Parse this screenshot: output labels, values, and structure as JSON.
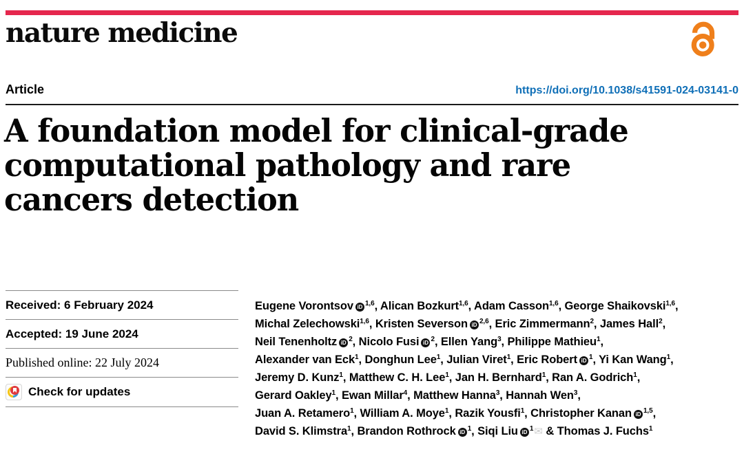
{
  "journal": {
    "name": "nature medicine"
  },
  "brand": {
    "bar_red": "#e5274d",
    "open_access_orange": "#ef7f1b",
    "link_blue": "#0f6fb7"
  },
  "header": {
    "article_label": "Article",
    "doi": "https://doi.org/10.1038/s41591-024-03141-0"
  },
  "title_lines": [
    "A foundation model for clinical-grade",
    "computational pathology and rare",
    "cancers detection"
  ],
  "meta": {
    "received": "Received: 6 February 2024",
    "accepted": "Accepted: 19 June 2024",
    "published": "Published online: 22 July 2024",
    "check_updates": "Check for updates"
  },
  "icons": {
    "open_access": "open-access-lock",
    "orcid": "iD",
    "envelope": "✉",
    "crossmark": "crossmark-badge"
  },
  "authors": {
    "lines": [
      [
        {
          "name": "Eugene Vorontsov",
          "orcid": true,
          "sup": "1,6",
          "sep": ", "
        },
        {
          "name": "Alican Bozkurt",
          "sup": "1,6",
          "sep": ", "
        },
        {
          "name": "Adam Casson",
          "sup": "1,6",
          "sep": ", "
        },
        {
          "name": "George Shaikovski",
          "sup": "1,6",
          "sep": ","
        }
      ],
      [
        {
          "name": "Michal Zelechowski",
          "sup": "1,6",
          "sep": ", "
        },
        {
          "name": "Kristen Severson",
          "orcid": true,
          "sup": "2,6",
          "sep": ", "
        },
        {
          "name": "Eric Zimmermann",
          "sup": "2",
          "sep": ", "
        },
        {
          "name": "James Hall",
          "sup": "2",
          "sep": ","
        }
      ],
      [
        {
          "name": "Neil Tenenholtz",
          "orcid": true,
          "sup": "2",
          "sep": ", "
        },
        {
          "name": "Nicolo Fusi",
          "orcid": true,
          "sup": "2",
          "sep": ", "
        },
        {
          "name": "Ellen Yang",
          "sup": "3",
          "sep": ", "
        },
        {
          "name": "Philippe Mathieu",
          "sup": "1",
          "sep": ","
        }
      ],
      [
        {
          "name": "Alexander van Eck",
          "sup": "1",
          "sep": ", "
        },
        {
          "name": "Donghun Lee",
          "sup": "1",
          "sep": ", "
        },
        {
          "name": "Julian Viret",
          "sup": "1",
          "sep": ", "
        },
        {
          "name": "Eric Robert",
          "orcid": true,
          "sup": "1",
          "sep": ", "
        },
        {
          "name": "Yi Kan Wang",
          "sup": "1",
          "sep": ","
        }
      ],
      [
        {
          "name": "Jeremy D. Kunz",
          "sup": "1",
          "sep": ", "
        },
        {
          "name": "Matthew C. H. Lee",
          "sup": "1",
          "sep": ", "
        },
        {
          "name": "Jan H. Bernhard",
          "sup": "1",
          "sep": ", "
        },
        {
          "name": "Ran A. Godrich",
          "sup": "1",
          "sep": ","
        }
      ],
      [
        {
          "name": "Gerard Oakley",
          "sup": "1",
          "sep": ", "
        },
        {
          "name": "Ewan Millar",
          "sup": "4",
          "sep": ", "
        },
        {
          "name": "Matthew Hanna",
          "sup": "3",
          "sep": ", "
        },
        {
          "name": "Hannah Wen",
          "sup": "3",
          "sep": ","
        }
      ],
      [
        {
          "name": "Juan A. Retamero",
          "sup": "1",
          "sep": ", "
        },
        {
          "name": "William A. Moye",
          "sup": "1",
          "sep": ", "
        },
        {
          "name": "Razik Yousfi",
          "sup": "1",
          "sep": ", "
        },
        {
          "name": "Christopher Kanan",
          "orcid": true,
          "sup": "1,5",
          "sep": ","
        }
      ],
      [
        {
          "name": "David S. Klimstra",
          "sup": "1",
          "sep": ", "
        },
        {
          "name": "Brandon Rothrock",
          "orcid": true,
          "sup": "1",
          "sep": ", "
        },
        {
          "name": "Siqi Liu",
          "orcid": true,
          "sup": "1",
          "env": true,
          "sep": " & "
        },
        {
          "name": "Thomas J. Fuchs",
          "sup": "1",
          "sep": ""
        }
      ]
    ]
  }
}
